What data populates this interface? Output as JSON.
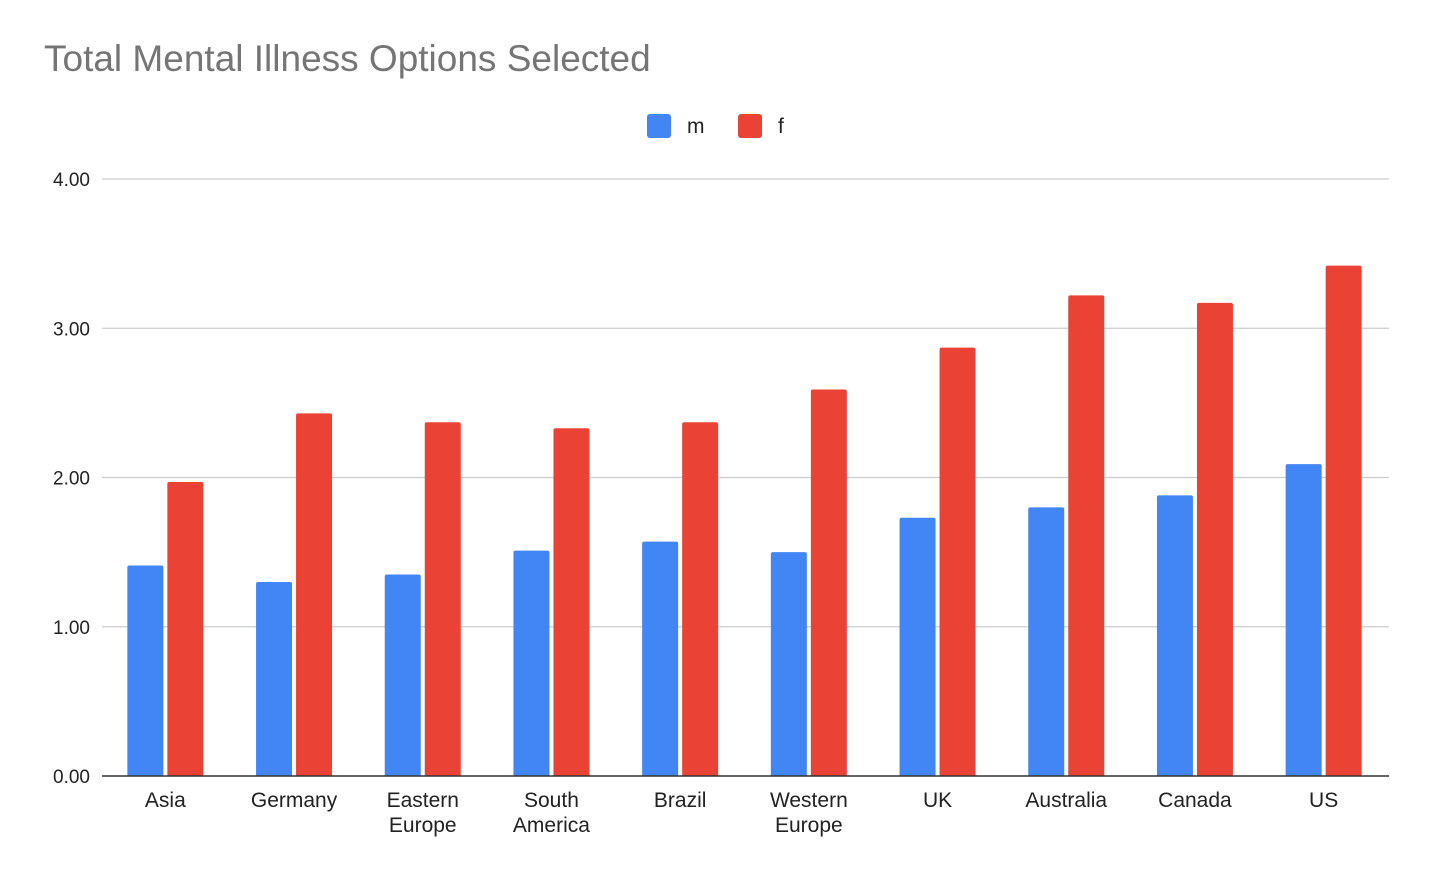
{
  "chart_data": {
    "type": "bar",
    "title": "Total Mental Illness Options Selected",
    "xlabel": "",
    "ylabel": "",
    "categories": [
      "Asia",
      "Germany",
      "Eastern Europe",
      "South America",
      "Brazil",
      "Western Europe",
      "UK",
      "Australia",
      "Canada",
      "US"
    ],
    "category_lines": [
      [
        "Asia"
      ],
      [
        "Germany"
      ],
      [
        "Eastern",
        "Europe"
      ],
      [
        "South",
        "America"
      ],
      [
        "Brazil"
      ],
      [
        "Western",
        "Europe"
      ],
      [
        "UK"
      ],
      [
        "Australia"
      ],
      [
        "Canada"
      ],
      [
        "US"
      ]
    ],
    "series": [
      {
        "name": "m",
        "color": "#4285f4",
        "values": [
          1.41,
          1.3,
          1.35,
          1.51,
          1.57,
          1.5,
          1.73,
          1.8,
          1.88,
          2.09
        ]
      },
      {
        "name": "f",
        "color": "#ea4335",
        "values": [
          1.97,
          2.43,
          2.37,
          2.33,
          2.37,
          2.59,
          2.87,
          3.22,
          3.17,
          3.42
        ]
      }
    ],
    "ylim": [
      0,
      4
    ],
    "yticks": [
      "0.00",
      "1.00",
      "2.00",
      "3.00",
      "4.00"
    ],
    "grid": true,
    "legend_position": "top-center"
  }
}
